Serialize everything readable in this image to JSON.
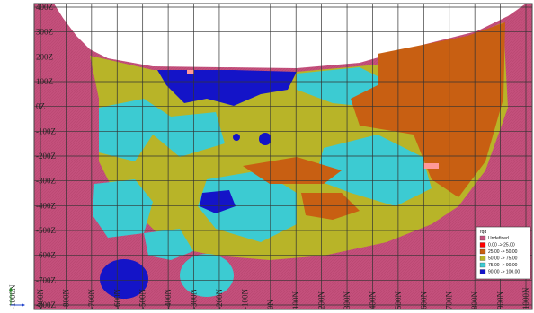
{
  "axes": {
    "z_labels": [
      "400Z",
      "300Z",
      "200Z",
      "100Z",
      "0Z",
      "-100Z",
      "-200Z",
      "-300Z",
      "-400Z",
      "-500Z",
      "-600Z",
      "-700Z",
      "-800Z"
    ],
    "n_labels": [
      "-1000N",
      "-900N",
      "-800N",
      "-700N",
      "-600N",
      "-500N",
      "-400N",
      "-300N",
      "-200N",
      "-100N",
      "0N",
      "100N",
      "200N",
      "300N",
      "400N",
      "500N",
      "600N",
      "700N",
      "800N",
      "900N",
      "1000N"
    ]
  },
  "legend": {
    "title": "rqd",
    "items": [
      {
        "label": "Undefined",
        "color": "#c4507c"
      },
      {
        "label": "0.00 -> 25.00",
        "color": "#ff0000"
      },
      {
        "label": "25.00 -> 50.00",
        "color": "#c85f12"
      },
      {
        "label": "50.00 -> 75.00",
        "color": "#b8b428"
      },
      {
        "label": "75.00 -> 90.00",
        "color": "#3ccbd2"
      },
      {
        "label": "90.00 -> 100.00",
        "color": "#1414c8"
      }
    ]
  }
}
